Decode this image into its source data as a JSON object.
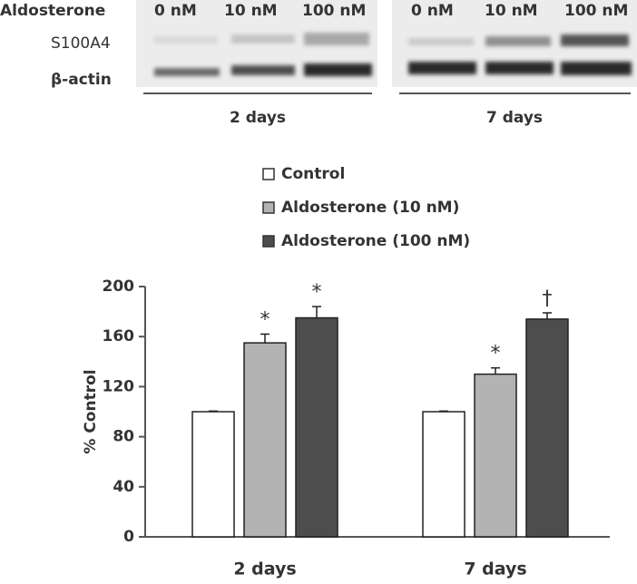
{
  "blot": {
    "treatment": "Aldosterone",
    "lanes": [
      "0 nM",
      "10 nM",
      "100 nM",
      "0 nM",
      "10 nM",
      "100 nM"
    ],
    "rows": [
      "S100A4",
      "β-actin"
    ],
    "groups": [
      "2 days",
      "7 days"
    ]
  },
  "chart_data": {
    "type": "bar",
    "y_label": "% Control",
    "categories": [
      "2 days",
      "7 days"
    ],
    "series": [
      {
        "name": "Control",
        "color": "#ffffff",
        "values": [
          100,
          100
        ],
        "errors": [
          0.5,
          0.5
        ]
      },
      {
        "name": "Aldosterone (10 nM)",
        "color": "#b3b3b3",
        "values": [
          155,
          130
        ],
        "errors": [
          7,
          5
        ],
        "markers": [
          "*",
          "*"
        ]
      },
      {
        "name": "Aldosterone (100 nM)",
        "color": "#4d4d4d",
        "values": [
          175,
          174
        ],
        "errors": [
          9,
          5
        ],
        "markers": [
          "*",
          "†"
        ]
      }
    ],
    "ylim": [
      0,
      200
    ],
    "yticks": [
      0,
      40,
      80,
      120,
      160,
      200
    ],
    "grid": false
  }
}
